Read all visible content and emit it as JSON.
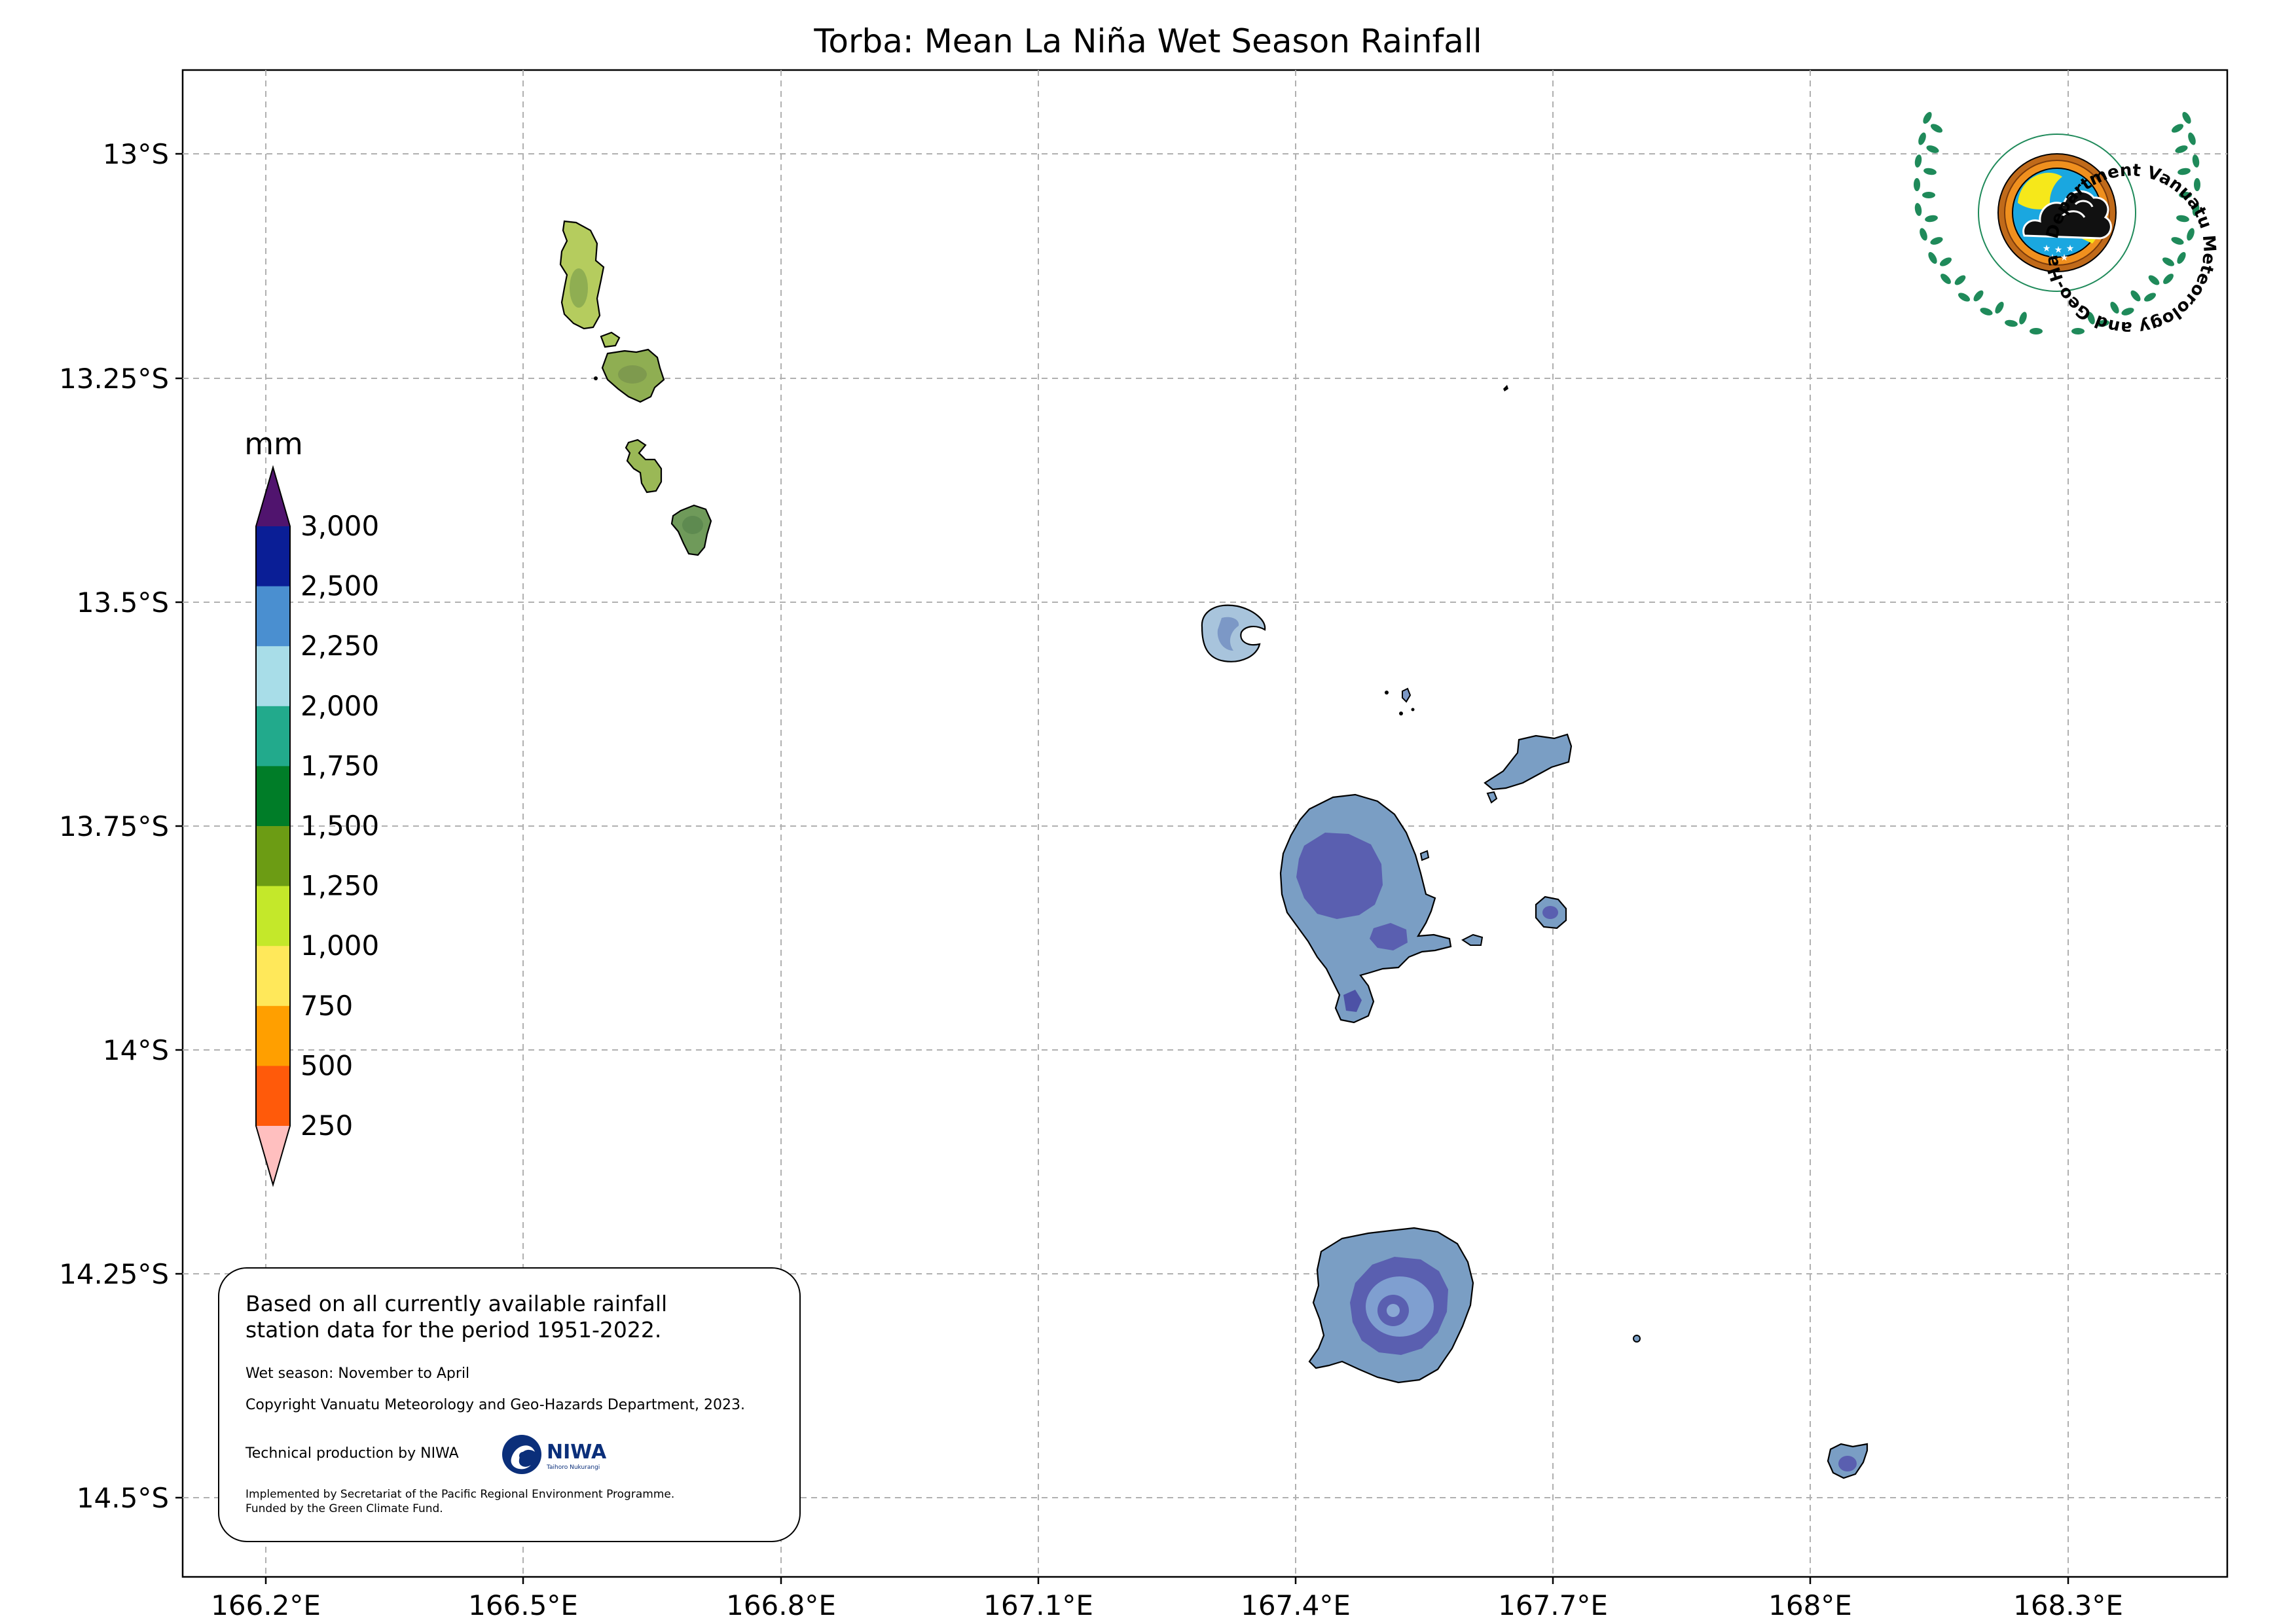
{
  "title": "Torba: Mean La Niña Wet Season Rainfall",
  "axes": {
    "x_ticks": [
      "166.2°E",
      "166.5°E",
      "166.8°E",
      "167.1°E",
      "167.4°E",
      "167.7°E",
      "168°E",
      "168.3°E"
    ],
    "y_ticks": [
      "13°S",
      "13.25°S",
      "13.5°S",
      "13.75°S",
      "14°S",
      "14.25°S",
      "14.5°S"
    ],
    "x_range": [
      166.105,
      168.475
    ],
    "y_range": [
      -13.91,
      -14.59
    ]
  },
  "colorbar": {
    "unit": "mm",
    "levels": [
      "250",
      "500",
      "750",
      "1,000",
      "1,250",
      "1,500",
      "1,750",
      "2,000",
      "2,250",
      "2,500",
      "3,000"
    ],
    "colors": [
      "#ffbfbf",
      "#ff5a0a",
      "#ff9f00",
      "#ffe85a",
      "#c4e82a",
      "#6c9c14",
      "#007d28",
      "#22aa8c",
      "#a8dde8",
      "#4a8fd0",
      "#0a1e96",
      "#50146e"
    ]
  },
  "info": {
    "main_text": "Based on all currently available rainfall\nstation data for the period 1951-2022.",
    "wet_season": "Wet season: November to April",
    "copyright": "Copyright Vanuatu Meteorology and Geo-Hazards Department, 2023.",
    "technical": "Technical production by NIWA",
    "implemented": "Implemented by Secretariat of the Pacific Regional Environment Programme.\nFunded by the Green Climate Fund.",
    "niwa_logo_text": "NIWA",
    "niwa_logo_subtext": "Taihoro Nukurangi"
  },
  "logo": {
    "text": "Department Vanuatu Meteorology and Geo-Hazards"
  },
  "colors": {
    "grid": "#b0b0b0",
    "land_north": "#b5cc5e",
    "land_north_dark": "#7e9a4e",
    "land_south": "#7a9ec4",
    "land_south_core": "#5a5fb0",
    "coastline": "#000000",
    "wreath": "#1f8a5a",
    "niwa_blue": "#0b2f7a"
  }
}
